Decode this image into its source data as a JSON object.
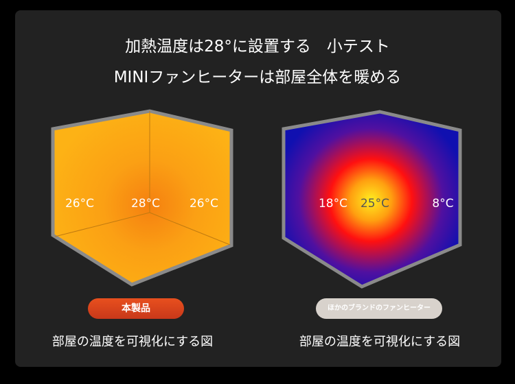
{
  "header": {
    "line1": "加熱温度は28°に設置する　小テスト",
    "line2": "MINIファンヒーターは部屋全体を暖める"
  },
  "left": {
    "temps": [
      "26°C",
      "28°C",
      "26°C"
    ],
    "badge": "本製品",
    "caption": "部屋の温度を可視化にする図",
    "colors": {
      "base": "#fdb215",
      "hot": "#f58a14",
      "badge": "#d8431c"
    }
  },
  "right": {
    "temps": [
      "18°C",
      "25°C",
      "8°C"
    ],
    "badge": "ほかのブランドのファンヒーター",
    "caption": "部屋の温度を可視化にする図",
    "colors": {
      "base": "#1010b0",
      "mid": "#ff1010",
      "hot": "#ffee20",
      "badge": "#d8d2cc"
    }
  }
}
